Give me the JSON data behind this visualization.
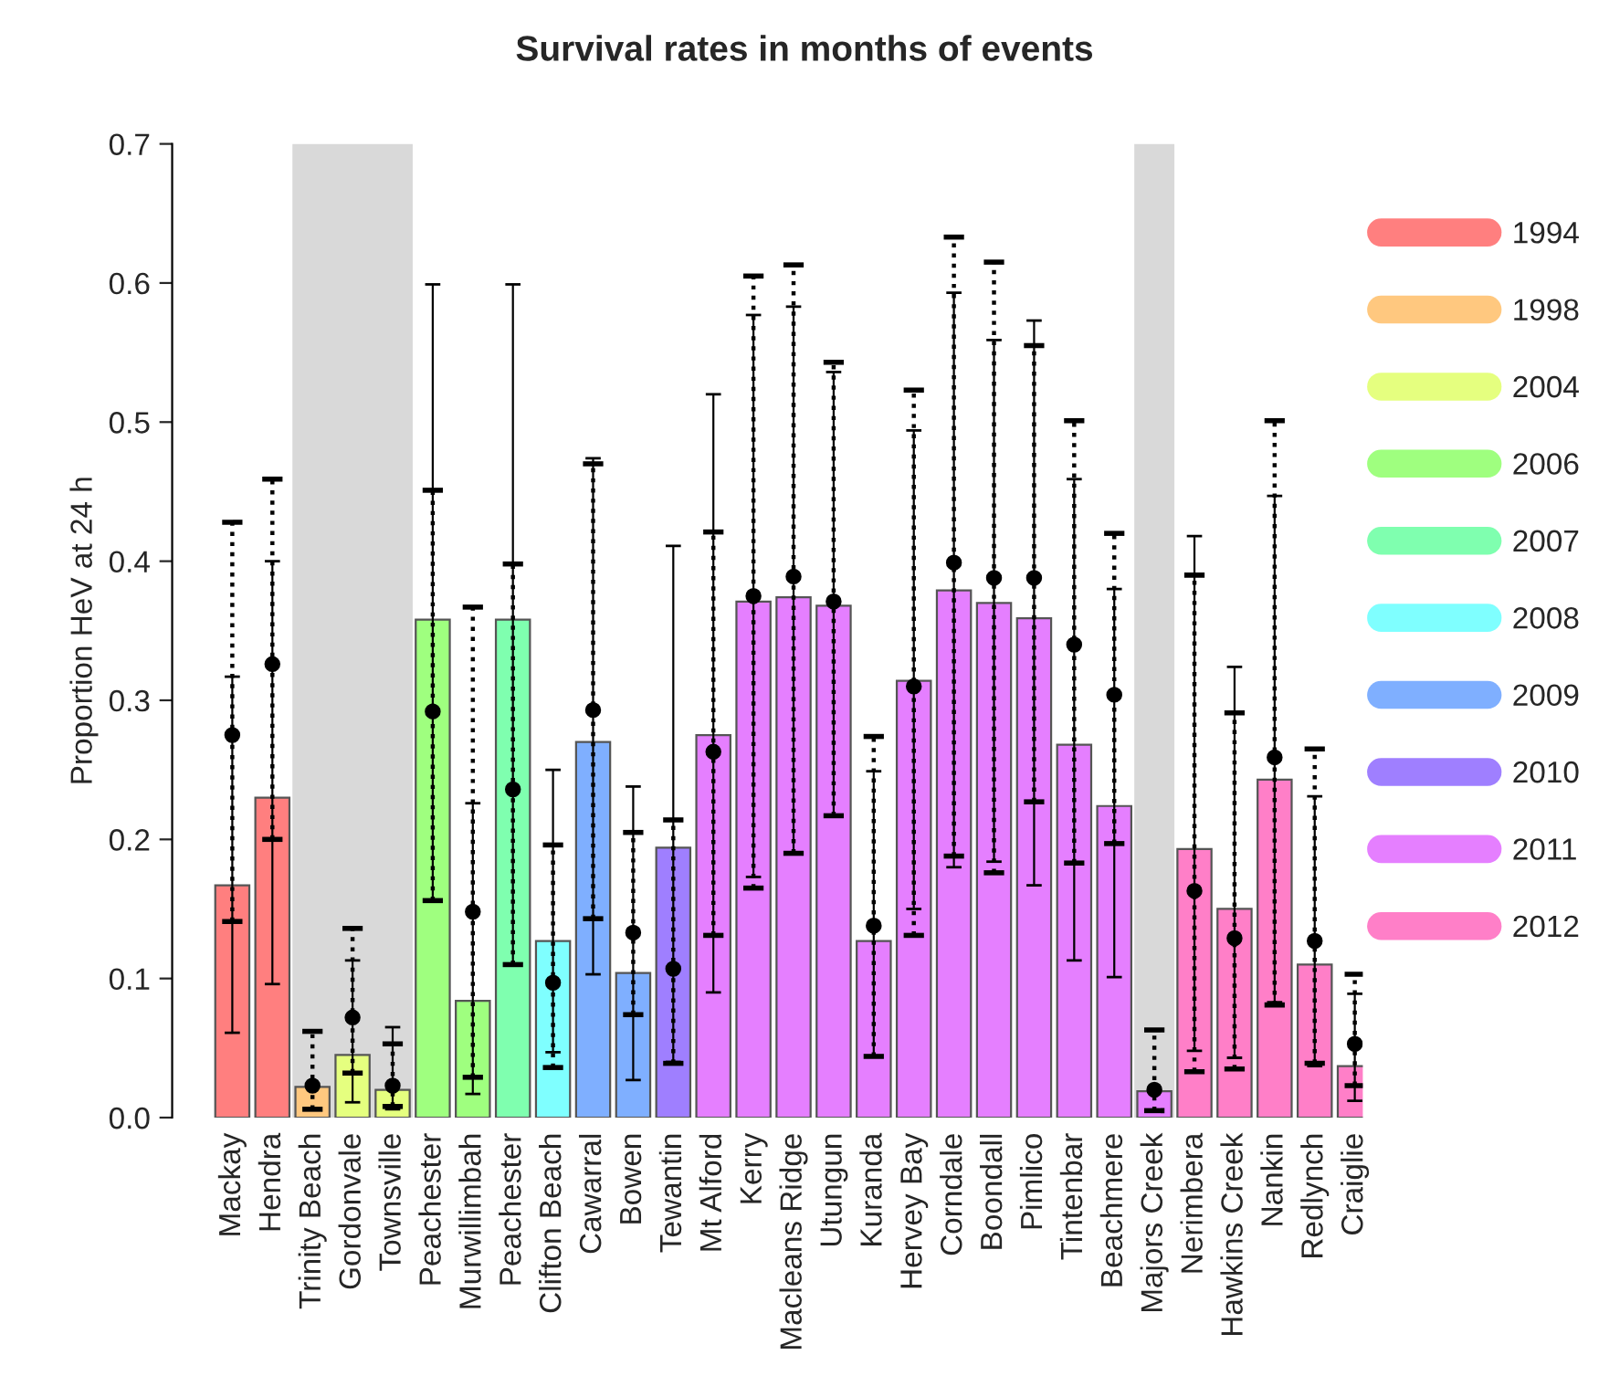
{
  "chart_data": {
    "type": "bar",
    "title": "Survival rates in months of events",
    "ylabel": "Proportion HeV at 24 h",
    "categories": [
      "Mackay",
      "Hendra",
      "Trinity Beach",
      "Gordonvale",
      "Townsville",
      "Peachester",
      "Murwillimbah",
      "Peachester",
      "Clifton Beach",
      "Cawarral",
      "Bowen",
      "Tewantin",
      "Mt Alford",
      "Kerry",
      "Macleans Ridge",
      "Utungun",
      "Kuranda",
      "Hervey Bay",
      "Corndale",
      "Boondall",
      "Pimlico",
      "Tintenbar",
      "Beachmere",
      "Majors Creek",
      "Nerimbera",
      "Hawkins Creek",
      "Nankin",
      "Redlynch",
      "Craiglie"
    ],
    "series": [
      {
        "name": "1994",
        "color": "#ff7f7f",
        "values": [
          0.167,
          0.23,
          null,
          null,
          null,
          null,
          null,
          null,
          null,
          null,
          null,
          null,
          null,
          null,
          null,
          null,
          null,
          null,
          null,
          null,
          null,
          null,
          null,
          null,
          null,
          null,
          null,
          null,
          null
        ],
        "errors": [
          [
            0.061,
            0.317
          ],
          [
            0.096,
            0.4
          ],
          null,
          null,
          null,
          null,
          null,
          null,
          null,
          null,
          null,
          null,
          null,
          null,
          null,
          null,
          null,
          null,
          null,
          null,
          null,
          null,
          null,
          null,
          null,
          null,
          null,
          null,
          null
        ]
      },
      {
        "name": "1998",
        "color": "#ffc87f",
        "values": [
          null,
          null,
          0.022,
          null,
          null,
          null,
          null,
          null,
          null,
          null,
          null,
          null,
          null,
          null,
          null,
          null,
          null,
          null,
          null,
          null,
          null,
          null,
          null,
          null,
          null,
          null,
          null,
          null,
          null
        ],
        "errors": [
          null,
          null,
          null,
          null,
          null,
          null,
          null,
          null,
          null,
          null,
          null,
          null,
          null,
          null,
          null,
          null,
          null,
          null,
          null,
          null,
          null,
          null,
          null,
          null,
          null,
          null,
          null,
          null,
          null
        ]
      },
      {
        "name": "2004",
        "color": "#e5ff7f",
        "values": [
          null,
          null,
          null,
          0.045,
          0.02,
          null,
          null,
          null,
          null,
          null,
          null,
          null,
          null,
          null,
          null,
          null,
          null,
          null,
          null,
          null,
          null,
          null,
          null,
          null,
          null,
          null,
          null,
          null,
          null
        ],
        "errors": [
          null,
          null,
          null,
          [
            0.011,
            0.113
          ],
          [
            0.006,
            0.065
          ],
          null,
          null,
          null,
          null,
          null,
          null,
          null,
          null,
          null,
          null,
          null,
          null,
          null,
          null,
          null,
          null,
          null,
          null,
          null,
          null,
          null,
          null,
          null,
          null
        ]
      },
      {
        "name": "2006",
        "color": "#9fff7f",
        "values": [
          null,
          null,
          null,
          null,
          null,
          0.358,
          0.084,
          null,
          null,
          null,
          null,
          null,
          null,
          null,
          null,
          null,
          null,
          null,
          null,
          null,
          null,
          null,
          null,
          null,
          null,
          null,
          null,
          null,
          null
        ],
        "errors": [
          null,
          null,
          null,
          null,
          null,
          [
            0.156,
            0.599
          ],
          [
            0.017,
            0.226
          ],
          null,
          null,
          null,
          null,
          null,
          null,
          null,
          null,
          null,
          null,
          null,
          null,
          null,
          null,
          null,
          null,
          null,
          null,
          null,
          null,
          null,
          null
        ]
      },
      {
        "name": "2007",
        "color": "#7fffaf",
        "values": [
          null,
          null,
          null,
          null,
          null,
          null,
          null,
          0.358,
          null,
          null,
          null,
          null,
          null,
          null,
          null,
          null,
          null,
          null,
          null,
          null,
          null,
          null,
          null,
          null,
          null,
          null,
          null,
          null,
          null
        ],
        "errors": [
          null,
          null,
          null,
          null,
          null,
          null,
          null,
          [
            0.11,
            0.599
          ],
          null,
          null,
          null,
          null,
          null,
          null,
          null,
          null,
          null,
          null,
          null,
          null,
          null,
          null,
          null,
          null,
          null,
          null,
          null,
          null,
          null
        ]
      },
      {
        "name": "2008",
        "color": "#7fffff",
        "values": [
          null,
          null,
          null,
          null,
          null,
          null,
          null,
          null,
          0.127,
          null,
          null,
          null,
          null,
          null,
          null,
          null,
          null,
          null,
          null,
          null,
          null,
          null,
          null,
          null,
          null,
          null,
          null,
          null,
          null
        ],
        "errors": [
          null,
          null,
          null,
          null,
          null,
          null,
          null,
          null,
          [
            0.047,
            0.25
          ],
          null,
          null,
          null,
          null,
          null,
          null,
          null,
          null,
          null,
          null,
          null,
          null,
          null,
          null,
          null,
          null,
          null,
          null,
          null,
          null
        ]
      },
      {
        "name": "2009",
        "color": "#7fafff",
        "values": [
          null,
          null,
          null,
          null,
          null,
          null,
          null,
          null,
          null,
          0.27,
          0.104,
          null,
          null,
          null,
          null,
          null,
          null,
          null,
          null,
          null,
          null,
          null,
          null,
          null,
          null,
          null,
          null,
          null,
          null
        ],
        "errors": [
          null,
          null,
          null,
          null,
          null,
          null,
          null,
          null,
          null,
          [
            0.103,
            0.474
          ],
          [
            0.027,
            0.238
          ],
          null,
          null,
          null,
          null,
          null,
          null,
          null,
          null,
          null,
          null,
          null,
          null,
          null,
          null,
          null,
          null,
          null,
          null
        ]
      },
      {
        "name": "2010",
        "color": "#9f7fff",
        "values": [
          null,
          null,
          null,
          null,
          null,
          null,
          null,
          null,
          null,
          null,
          null,
          0.194,
          null,
          null,
          null,
          null,
          null,
          null,
          null,
          null,
          null,
          null,
          null,
          null,
          null,
          null,
          null,
          null,
          null
        ],
        "errors": [
          null,
          null,
          null,
          null,
          null,
          null,
          null,
          null,
          null,
          null,
          null,
          [
            0.04,
            0.411
          ],
          null,
          null,
          null,
          null,
          null,
          null,
          null,
          null,
          null,
          null,
          null,
          null,
          null,
          null,
          null,
          null,
          null
        ]
      },
      {
        "name": "2011",
        "color": "#e57fff",
        "values": [
          null,
          null,
          null,
          null,
          null,
          null,
          null,
          null,
          null,
          null,
          null,
          null,
          0.275,
          0.371,
          0.374,
          0.368,
          0.127,
          0.314,
          0.379,
          0.37,
          0.359,
          0.268,
          0.224,
          0.019,
          null,
          null,
          null,
          null,
          null
        ],
        "errors": [
          null,
          null,
          null,
          null,
          null,
          null,
          null,
          null,
          null,
          null,
          null,
          null,
          [
            0.09,
            0.52
          ],
          [
            0.173,
            0.577
          ],
          [
            0.19,
            0.583
          ],
          [
            0.217,
            0.536
          ],
          [
            0.044,
            0.249
          ],
          [
            0.15,
            0.494
          ],
          [
            0.18,
            0.593
          ],
          [
            0.184,
            0.559
          ],
          [
            0.167,
            0.573
          ],
          [
            0.113,
            0.459
          ],
          [
            0.101,
            0.38
          ],
          null,
          null,
          null,
          null,
          null,
          null
        ]
      },
      {
        "name": "2012",
        "color": "#ff7fc8",
        "values": [
          null,
          null,
          null,
          null,
          null,
          null,
          null,
          null,
          null,
          null,
          null,
          null,
          null,
          null,
          null,
          null,
          null,
          null,
          null,
          null,
          null,
          null,
          null,
          null,
          0.193,
          0.15,
          0.243,
          0.11,
          0.037
        ],
        "errors": [
          null,
          null,
          null,
          null,
          null,
          null,
          null,
          null,
          null,
          null,
          null,
          null,
          null,
          null,
          null,
          null,
          null,
          null,
          null,
          null,
          null,
          null,
          null,
          null,
          [
            0.048,
            0.418
          ],
          [
            0.043,
            0.324
          ],
          [
            0.083,
            0.447
          ],
          [
            0.037,
            0.231
          ],
          [
            0.012,
            0.089
          ]
        ]
      },
      {
        "type": "scatter",
        "color": "#000000",
        "marker": "circle",
        "line_style": "dotted",
        "values": [
          0.275,
          0.326,
          0.023,
          0.072,
          0.023,
          0.292,
          0.148,
          0.236,
          0.097,
          0.293,
          0.133,
          0.107,
          0.263,
          0.375,
          0.389,
          0.371,
          0.138,
          0.31,
          0.399,
          0.388,
          0.388,
          0.34,
          0.304,
          0.02,
          0.163,
          0.129,
          0.259,
          0.127,
          0.053
        ],
        "errors": [
          [
            0.141,
            0.428
          ],
          [
            0.2,
            0.459
          ],
          [
            0.006,
            0.062
          ],
          [
            0.032,
            0.136
          ],
          [
            0.008,
            0.053
          ],
          [
            0.156,
            0.451
          ],
          [
            0.029,
            0.367
          ],
          [
            0.11,
            0.398
          ],
          [
            0.036,
            0.196
          ],
          [
            0.143,
            0.47
          ],
          [
            0.074,
            0.205
          ],
          [
            0.039,
            0.214
          ],
          [
            0.131,
            0.421
          ],
          [
            0.165,
            0.605
          ],
          [
            0.19,
            0.613
          ],
          [
            0.217,
            0.543
          ],
          [
            0.044,
            0.274
          ],
          [
            0.131,
            0.523
          ],
          [
            0.188,
            0.633
          ],
          [
            0.176,
            0.615
          ],
          [
            0.227,
            0.555
          ],
          [
            0.183,
            0.501
          ],
          [
            0.197,
            0.42
          ],
          [
            0.005,
            0.063
          ],
          [
            0.033,
            0.39
          ],
          [
            0.035,
            0.291
          ],
          [
            0.081,
            0.501
          ],
          [
            0.039,
            0.265
          ],
          [
            0.023,
            0.103
          ]
        ]
      }
    ],
    "bands": [
      {
        "axis": "x",
        "from": "Trinity Beach",
        "to": "Townsville",
        "color": "#d9d9d9"
      },
      {
        "axis": "x",
        "from": "Majors Creek",
        "to": "Majors Creek",
        "color": "#d9d9d9"
      }
    ],
    "ylim": [
      0,
      0.7
    ],
    "yticks": [
      {
        "value": 0,
        "label": "0.0"
      },
      {
        "value": 0.1,
        "label": "0.1"
      },
      {
        "value": 0.2,
        "label": "0.2"
      },
      {
        "value": 0.3,
        "label": "0.3"
      },
      {
        "value": 0.4,
        "label": "0.4"
      },
      {
        "value": 0.5,
        "label": "0.5"
      },
      {
        "value": 0.6,
        "label": "0.6"
      },
      {
        "value": 0.7,
        "label": "0.7"
      }
    ],
    "grid": false,
    "legend": "right"
  }
}
